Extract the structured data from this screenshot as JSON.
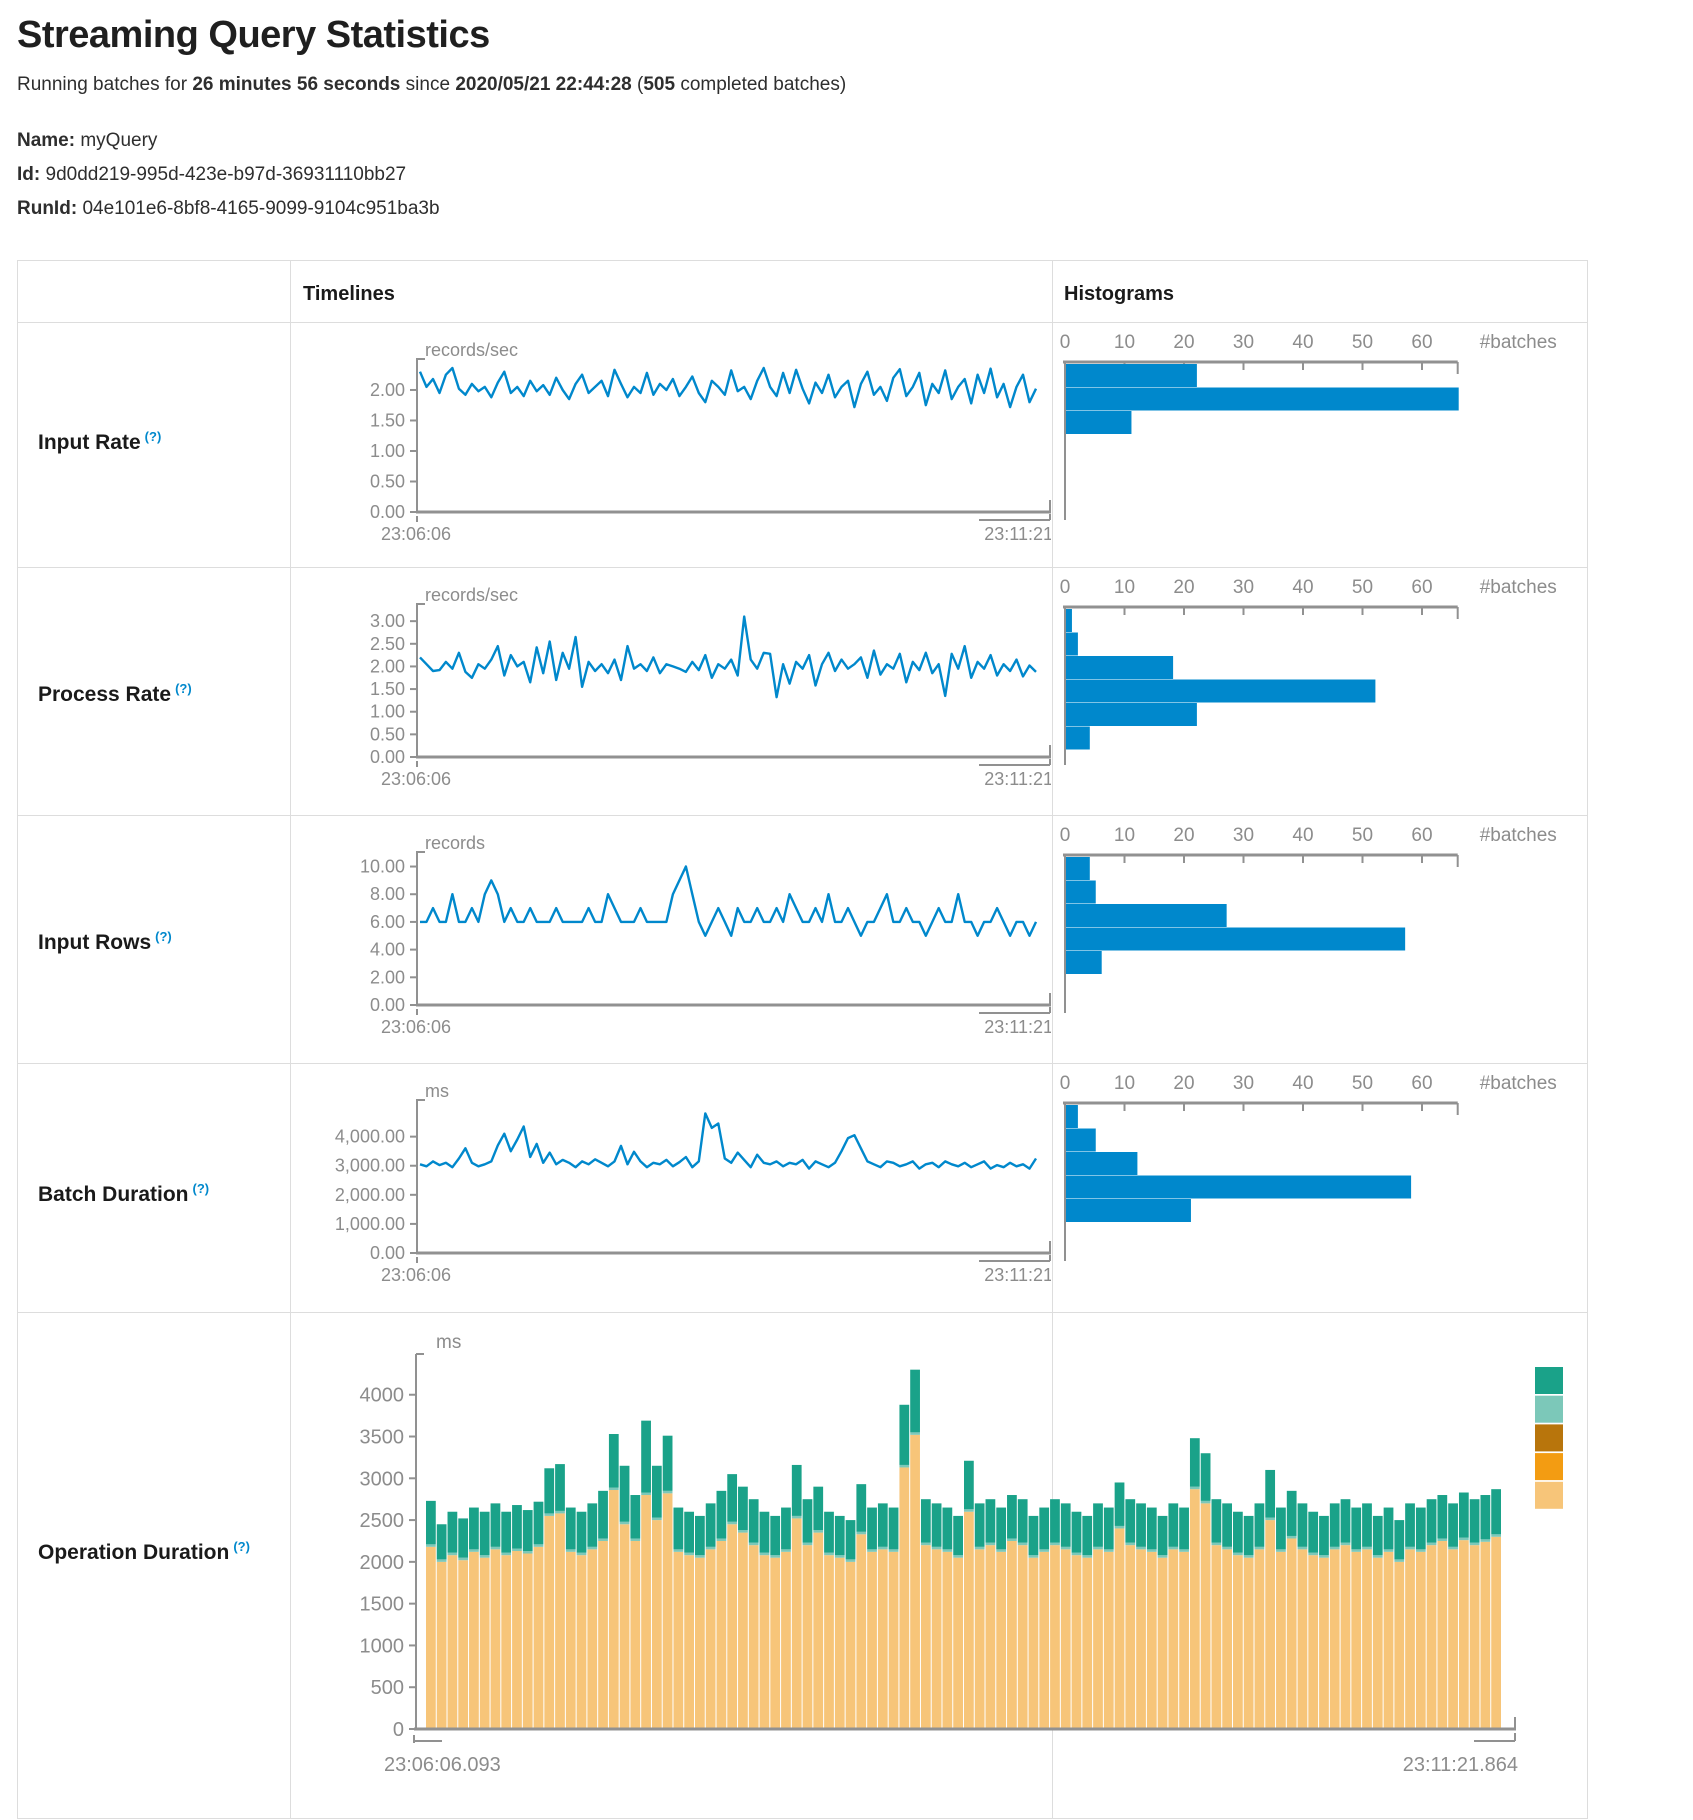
{
  "page": {
    "title": "Streaming Query Statistics"
  },
  "summary": {
    "prefix": "Running batches for ",
    "duration": "26 minutes 56 seconds",
    "mid": " since ",
    "start_time": "2020/05/21 22:44:28",
    "paren_open": " (",
    "completed_batches": "505",
    "suffix": " completed batches)"
  },
  "query_info": {
    "name_label": "Name:",
    "name": "myQuery",
    "id_label": "Id:",
    "id": "9d0dd219-995d-423e-b97d-36931110bb27",
    "runid_label": "RunId:",
    "runid": "04e101e6-8bf8-4165-9099-9104c951ba3b"
  },
  "table": {
    "timelines_header": "Timelines",
    "histograms_header": "Histograms"
  },
  "rows": [
    {
      "label": "Input Rate",
      "help": "(?)"
    },
    {
      "label": "Process Rate",
      "help": "(?)"
    },
    {
      "label": "Input Rows",
      "help": "(?)"
    },
    {
      "label": "Batch Duration",
      "help": "(?)"
    },
    {
      "label": "Operation Duration",
      "help": "(?)"
    }
  ],
  "colors": {
    "line_blue": "#0088cc",
    "bar_blue": "#0088cc",
    "axis_gray": "#919191",
    "tick_text_gray": "#8c8c8c",
    "border_gray": "#dddddd",
    "legend": [
      "#1AA289",
      "#7CC8B9",
      "#B8750C",
      "#F39C12",
      "#F7C579"
    ]
  },
  "chart_data": [
    {
      "id": "input-rate-timeline",
      "type": "line",
      "unit": "records/sec",
      "x_start_label": "23:06:06",
      "x_end_label": "23:11:21",
      "yticks": [
        0,
        0.5,
        1,
        1.5,
        2
      ],
      "ytick_labels": [
        "0.00",
        "0.50",
        "1.00",
        "1.50",
        "2.00"
      ],
      "ymax": 2.36,
      "values": [
        2.3,
        2.05,
        2.18,
        1.95,
        2.25,
        2.36,
        2.02,
        1.92,
        2.1,
        1.98,
        2.05,
        1.88,
        2.12,
        2.3,
        1.95,
        2.05,
        1.9,
        2.15,
        1.98,
        2.08,
        1.92,
        2.2,
        2.0,
        1.85,
        2.1,
        2.25,
        1.95,
        2.05,
        2.15,
        1.9,
        2.33,
        2.1,
        1.88,
        2.05,
        1.95,
        2.28,
        1.92,
        2.1,
        2.0,
        2.18,
        1.9,
        2.05,
        2.22,
        1.95,
        1.8,
        2.15,
        2.05,
        1.92,
        2.32,
        1.98,
        2.05,
        1.85,
        2.15,
        2.36,
        2.05,
        1.9,
        2.28,
        1.95,
        2.33,
        2.02,
        1.78,
        2.12,
        1.95,
        2.25,
        1.88,
        2.05,
        2.15,
        1.72,
        2.1,
        2.3,
        1.92,
        2.05,
        1.82,
        2.2,
        2.34,
        1.9,
        2.05,
        2.28,
        1.75,
        2.1,
        1.95,
        2.32,
        1.85,
        2.05,
        2.18,
        1.78,
        2.25,
        1.95,
        2.35,
        1.88,
        2.1,
        1.72,
        2.05,
        2.25,
        1.8,
        2.02
      ]
    },
    {
      "id": "input-rate-histogram",
      "type": "bar",
      "xlabel": "#batches",
      "xticks": [
        0,
        10,
        20,
        30,
        40,
        50,
        60
      ],
      "xmax": 66,
      "values": [
        22,
        66,
        11
      ]
    },
    {
      "id": "process-rate-timeline",
      "type": "line",
      "unit": "records/sec",
      "x_start_label": "23:06:06",
      "x_end_label": "23:11:21",
      "yticks": [
        0,
        0.5,
        1,
        1.5,
        2,
        2.5,
        3
      ],
      "ytick_labels": [
        "0.00",
        "0.50",
        "1.00",
        "1.50",
        "2.00",
        "2.50",
        "3.00"
      ],
      "ymax": 3.18,
      "values": [
        2.2,
        2.05,
        1.9,
        1.92,
        2.1,
        1.95,
        2.3,
        1.88,
        1.75,
        2.05,
        1.95,
        2.15,
        2.45,
        1.8,
        2.25,
        2.0,
        2.1,
        1.65,
        2.42,
        1.85,
        2.55,
        1.7,
        2.3,
        1.95,
        2.65,
        1.55,
        2.1,
        1.9,
        2.05,
        1.85,
        2.15,
        1.7,
        2.45,
        1.95,
        2.05,
        1.9,
        2.2,
        1.85,
        2.05,
        2.0,
        1.95,
        1.88,
        2.1,
        1.92,
        2.25,
        1.75,
        2.05,
        1.95,
        2.15,
        1.8,
        3.1,
        2.15,
        1.95,
        2.3,
        2.28,
        1.32,
        2.05,
        1.62,
        2.1,
        1.95,
        2.25,
        1.58,
        2.05,
        2.3,
        1.9,
        2.15,
        1.95,
        2.05,
        2.2,
        1.75,
        2.35,
        1.82,
        2.05,
        1.95,
        2.28,
        1.65,
        2.1,
        1.92,
        2.3,
        1.85,
        2.05,
        1.35,
        2.28,
        1.95,
        2.45,
        1.75,
        2.1,
        1.95,
        2.25,
        1.8,
        2.05,
        1.9,
        2.15,
        1.78,
        2.02,
        1.88
      ]
    },
    {
      "id": "process-rate-histogram",
      "type": "bar",
      "xlabel": "#batches",
      "xticks": [
        0,
        10,
        20,
        30,
        40,
        50,
        60
      ],
      "xmax": 66,
      "values": [
        1,
        2,
        18,
        52,
        22,
        4
      ]
    },
    {
      "id": "input-rows-timeline",
      "type": "line",
      "unit": "records",
      "x_start_label": "23:06:06",
      "x_end_label": "23:11:21",
      "yticks": [
        0,
        2,
        4,
        6,
        8,
        10
      ],
      "ytick_labels": [
        "0.00",
        "2.00",
        "4.00",
        "6.00",
        "8.00",
        "10.00"
      ],
      "ymax": 10.4,
      "values": [
        6,
        6,
        7,
        6,
        6,
        8,
        6,
        6,
        7,
        6,
        8,
        9,
        8,
        6,
        7,
        6,
        6,
        7,
        6,
        6,
        6,
        7,
        6,
        6,
        6,
        6,
        7,
        6,
        6,
        8,
        7,
        6,
        6,
        6,
        7,
        6,
        6,
        6,
        6,
        8,
        9,
        10,
        8,
        6,
        5,
        6,
        7,
        6,
        5,
        7,
        6,
        6,
        7,
        6,
        6,
        7,
        6,
        8,
        7,
        6,
        6,
        7,
        6,
        8,
        6,
        6,
        7,
        6,
        5,
        6,
        6,
        7,
        8,
        6,
        6,
        7,
        6,
        6,
        5,
        6,
        7,
        6,
        6,
        8,
        6,
        6,
        5,
        6,
        6,
        7,
        6,
        5,
        6,
        6,
        5,
        6
      ]
    },
    {
      "id": "input-rows-histogram",
      "type": "bar",
      "xlabel": "#batches",
      "xticks": [
        0,
        10,
        20,
        30,
        40,
        50,
        60
      ],
      "xmax": 66,
      "values": [
        4,
        5,
        27,
        57,
        6
      ]
    },
    {
      "id": "batch-duration-timeline",
      "type": "line",
      "unit": "ms",
      "x_start_label": "23:06:06",
      "x_end_label": "23:11:21",
      "yticks": [
        0,
        1000,
        2000,
        3000,
        4000
      ],
      "ytick_labels": [
        "0.00",
        "1,000.00",
        "2,000.00",
        "3,000.00",
        "4,000.00"
      ],
      "ymax": 4950,
      "values": [
        3050,
        2980,
        3150,
        3020,
        3100,
        2950,
        3250,
        3600,
        3100,
        2980,
        3050,
        3150,
        3700,
        4100,
        3500,
        3900,
        4350,
        3300,
        3750,
        3100,
        3450,
        3050,
        3200,
        3100,
        2950,
        3150,
        3050,
        3220,
        3100,
        2980,
        3150,
        3680,
        3050,
        3480,
        3150,
        2950,
        3100,
        3050,
        3200,
        2980,
        3120,
        3300,
        2950,
        3150,
        4800,
        4300,
        4450,
        3250,
        3100,
        3450,
        3200,
        2950,
        3380,
        3100,
        3050,
        3150,
        2980,
        3100,
        3050,
        3200,
        2900,
        3150,
        3050,
        2950,
        3100,
        3500,
        3950,
        4050,
        3600,
        3150,
        3050,
        2950,
        3150,
        3100,
        2980,
        3050,
        3150,
        2900,
        3050,
        3100,
        2950,
        3150,
        3050,
        2980,
        3100,
        2950,
        3050,
        3150,
        2900,
        3020,
        2950,
        3100,
        2980,
        3050,
        2900,
        3250
      ]
    },
    {
      "id": "batch-duration-histogram",
      "type": "bar",
      "xlabel": "#batches",
      "xticks": [
        0,
        10,
        20,
        30,
        40,
        50,
        60
      ],
      "xmax": 66,
      "values": [
        2,
        5,
        12,
        58,
        21
      ]
    },
    {
      "id": "operation-duration",
      "type": "stacked-bar",
      "unit": "ms",
      "x_start_label": "23:06:06.093",
      "x_end_label": "23:11:21.864",
      "yticks": [
        0,
        500,
        1000,
        1500,
        2000,
        2500,
        3000,
        3500,
        4000
      ],
      "ytick_labels": [
        "0",
        "500",
        "1000",
        "1500",
        "2000",
        "2500",
        "3000",
        "3500",
        "4000"
      ],
      "ymax": 4320,
      "sliver_value": 30,
      "totals": [
        2730,
        2450,
        2600,
        2520,
        2650,
        2600,
        2700,
        2600,
        2680,
        2620,
        2720,
        3120,
        3170,
        2650,
        2600,
        2700,
        2850,
        3530,
        3150,
        2800,
        3690,
        3150,
        3510,
        2650,
        2600,
        2550,
        2700,
        2850,
        3050,
        2900,
        2750,
        2600,
        2550,
        2650,
        3160,
        2750,
        2900,
        2600,
        2550,
        2500,
        2930,
        2650,
        2700,
        2650,
        3880,
        4300,
        2750,
        2700,
        2650,
        2550,
        3210,
        2700,
        2750,
        2650,
        2800,
        2750,
        2550,
        2650,
        2750,
        2700,
        2600,
        2550,
        2700,
        2650,
        2950,
        2750,
        2700,
        2650,
        2550,
        2700,
        2650,
        3480,
        3300,
        2750,
        2700,
        2600,
        2550,
        2700,
        3100,
        2650,
        2850,
        2700,
        2600,
        2550,
        2700,
        2750,
        2650,
        2700,
        2550,
        2650,
        2500,
        2700,
        2650,
        2750,
        2800,
        2700,
        2830,
        2750,
        2800,
        2870
      ],
      "bases": [
        2180,
        2000,
        2080,
        2020,
        2120,
        2050,
        2150,
        2080,
        2130,
        2100,
        2180,
        2550,
        2580,
        2120,
        2080,
        2150,
        2250,
        2860,
        2450,
        2250,
        2800,
        2500,
        2820,
        2120,
        2080,
        2050,
        2150,
        2250,
        2450,
        2350,
        2200,
        2080,
        2050,
        2120,
        2520,
        2200,
        2350,
        2080,
        2050,
        2000,
        2330,
        2120,
        2150,
        2120,
        3130,
        3520,
        2200,
        2150,
        2120,
        2050,
        2600,
        2150,
        2200,
        2120,
        2250,
        2200,
        2050,
        2120,
        2200,
        2150,
        2080,
        2050,
        2150,
        2120,
        2400,
        2200,
        2150,
        2120,
        2050,
        2150,
        2120,
        2870,
        2700,
        2200,
        2150,
        2080,
        2050,
        2150,
        2500,
        2120,
        2280,
        2150,
        2080,
        2050,
        2150,
        2200,
        2120,
        2150,
        2050,
        2120,
        2000,
        2150,
        2120,
        2200,
        2250,
        2150,
        2260,
        2200,
        2240,
        2300
      ]
    }
  ]
}
